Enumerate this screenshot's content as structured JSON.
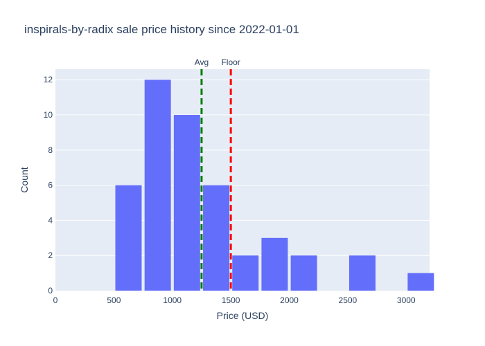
{
  "chart_data": {
    "type": "bar",
    "title": "inspirals-by-radix sale price history since 2022-01-01",
    "xlabel": "Price (USD)",
    "ylabel": "Count",
    "xlim": [
      0,
      3200
    ],
    "ylim": [
      0,
      12.6
    ],
    "x_ticks": [
      0,
      500,
      1000,
      1500,
      2000,
      2500,
      3000
    ],
    "y_ticks": [
      0,
      2,
      4,
      6,
      8,
      10,
      12
    ],
    "bin_width": 250,
    "bins": [
      {
        "start": 500,
        "end": 750,
        "count": 6
      },
      {
        "start": 750,
        "end": 1000,
        "count": 12
      },
      {
        "start": 1000,
        "end": 1250,
        "count": 10
      },
      {
        "start": 1250,
        "end": 1500,
        "count": 6
      },
      {
        "start": 1500,
        "end": 1750,
        "count": 2
      },
      {
        "start": 1750,
        "end": 2000,
        "count": 3
      },
      {
        "start": 2000,
        "end": 2250,
        "count": 2
      },
      {
        "start": 2500,
        "end": 2750,
        "count": 2
      },
      {
        "start": 3000,
        "end": 3250,
        "count": 1
      }
    ],
    "reference_lines": [
      {
        "label": "Avg",
        "x": 1250,
        "color": "#008000",
        "style": "dashed"
      },
      {
        "label": "Floor",
        "x": 1500,
        "color": "#ff0000",
        "style": "dashed"
      }
    ],
    "bar_color": "#636efa",
    "plot_background": "#e5ecf6",
    "grid": true,
    "legend": false
  }
}
